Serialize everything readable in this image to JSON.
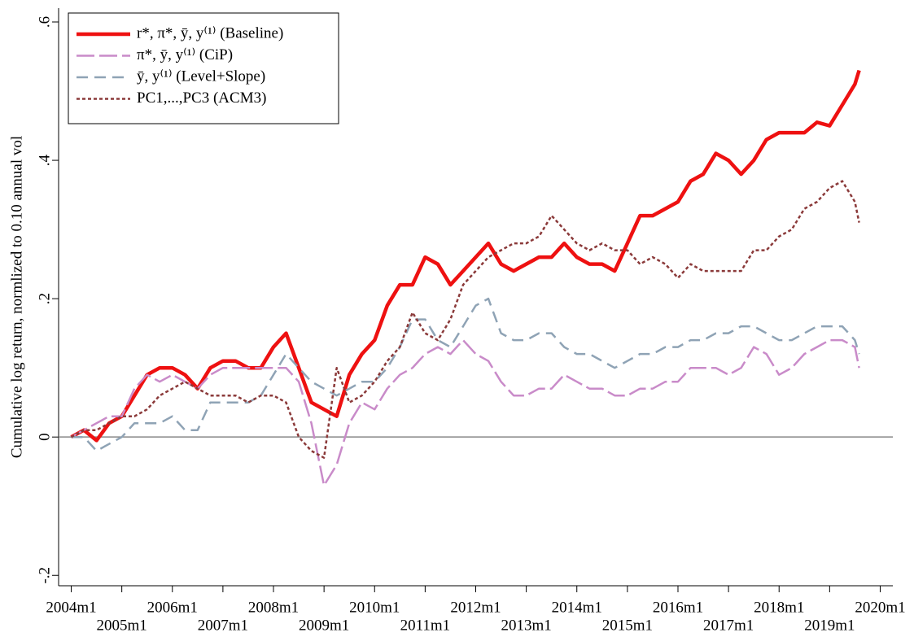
{
  "chart_data": {
    "type": "line",
    "y_label": "Cumulative log return, normlized to 0.10 annual vol",
    "x": [
      "2004m1",
      "2004m4",
      "2004m7",
      "2004m10",
      "2005m1",
      "2005m4",
      "2005m7",
      "2005m10",
      "2006m1",
      "2006m4",
      "2006m7",
      "2006m10",
      "2007m1",
      "2007m4",
      "2007m7",
      "2007m10",
      "2008m1",
      "2008m4",
      "2008m7",
      "2008m10",
      "2009m1",
      "2009m4",
      "2009m7",
      "2009m10",
      "2010m1",
      "2010m4",
      "2010m7",
      "2010m10",
      "2011m1",
      "2011m4",
      "2011m7",
      "2011m10",
      "2012m1",
      "2012m4",
      "2012m7",
      "2012m10",
      "2013m1",
      "2013m4",
      "2013m7",
      "2013m10",
      "2014m1",
      "2014m4",
      "2014m7",
      "2014m10",
      "2015m1",
      "2015m4",
      "2015m7",
      "2015m10",
      "2016m1",
      "2016m4",
      "2016m7",
      "2016m10",
      "2017m1",
      "2017m4",
      "2017m7",
      "2017m10",
      "2018m1",
      "2018m4",
      "2018m7",
      "2018m10",
      "2019m1",
      "2019m4",
      "2019m7",
      "2019m8"
    ],
    "series": [
      {
        "name": "r*, π*, ȳ, y⁽¹⁾  (Baseline)",
        "color": "#ee1111",
        "style": "solid",
        "values": [
          0,
          0.01,
          -0.005,
          0.02,
          0.03,
          0.06,
          0.09,
          0.1,
          0.1,
          0.09,
          0.07,
          0.1,
          0.11,
          0.11,
          0.1,
          0.1,
          0.13,
          0.15,
          0.1,
          0.05,
          0.04,
          0.03,
          0.09,
          0.12,
          0.14,
          0.19,
          0.22,
          0.22,
          0.26,
          0.25,
          0.22,
          0.24,
          0.26,
          0.28,
          0.25,
          0.24,
          0.25,
          0.26,
          0.26,
          0.28,
          0.26,
          0.25,
          0.25,
          0.24,
          0.28,
          0.32,
          0.32,
          0.33,
          0.34,
          0.37,
          0.38,
          0.41,
          0.4,
          0.38,
          0.4,
          0.43,
          0.44,
          0.44,
          0.44,
          0.455,
          0.45,
          0.48,
          0.51,
          0.53
        ]
      },
      {
        "name": "π*, ȳ, y⁽¹⁾  (CiP)",
        "color": "#c98bc9",
        "style": "longdash",
        "values": [
          0,
          0.01,
          0.02,
          0.03,
          0.03,
          0.07,
          0.09,
          0.08,
          0.09,
          0.08,
          0.07,
          0.09,
          0.1,
          0.1,
          0.1,
          0.1,
          0.1,
          0.1,
          0.08,
          0.02,
          -0.07,
          -0.04,
          0.02,
          0.05,
          0.04,
          0.07,
          0.09,
          0.1,
          0.12,
          0.13,
          0.12,
          0.14,
          0.12,
          0.11,
          0.08,
          0.06,
          0.06,
          0.07,
          0.07,
          0.09,
          0.08,
          0.07,
          0.07,
          0.06,
          0.06,
          0.07,
          0.07,
          0.08,
          0.08,
          0.1,
          0.1,
          0.1,
          0.09,
          0.1,
          0.13,
          0.12,
          0.09,
          0.1,
          0.12,
          0.13,
          0.14,
          0.14,
          0.13,
          0.1
        ]
      },
      {
        "name": "ȳ, y⁽¹⁾  (Level+Slope)",
        "color": "#8fa3b5",
        "style": "dash",
        "values": [
          0,
          0,
          -0.02,
          -0.01,
          0,
          0.02,
          0.02,
          0.02,
          0.03,
          0.01,
          0.01,
          0.05,
          0.05,
          0.05,
          0.05,
          0.06,
          0.09,
          0.12,
          0.1,
          0.08,
          0.07,
          0.06,
          0.07,
          0.08,
          0.08,
          0.1,
          0.13,
          0.17,
          0.17,
          0.14,
          0.13,
          0.16,
          0.19,
          0.2,
          0.15,
          0.14,
          0.14,
          0.15,
          0.15,
          0.13,
          0.12,
          0.12,
          0.11,
          0.1,
          0.11,
          0.12,
          0.12,
          0.13,
          0.13,
          0.14,
          0.14,
          0.15,
          0.15,
          0.16,
          0.16,
          0.15,
          0.14,
          0.14,
          0.15,
          0.16,
          0.16,
          0.16,
          0.14,
          0.12
        ]
      },
      {
        "name": "PC1,...,PC3  (ACM3)",
        "color": "#8b3a3a",
        "style": "shortdash",
        "values": [
          0,
          0.01,
          0.01,
          0.02,
          0.03,
          0.03,
          0.04,
          0.06,
          0.07,
          0.08,
          0.07,
          0.06,
          0.06,
          0.06,
          0.05,
          0.06,
          0.06,
          0.05,
          0,
          -0.02,
          -0.03,
          0.1,
          0.05,
          0.06,
          0.08,
          0.11,
          0.13,
          0.18,
          0.15,
          0.14,
          0.17,
          0.22,
          0.24,
          0.26,
          0.27,
          0.28,
          0.28,
          0.29,
          0.32,
          0.3,
          0.28,
          0.27,
          0.28,
          0.27,
          0.27,
          0.25,
          0.26,
          0.25,
          0.23,
          0.25,
          0.24,
          0.24,
          0.24,
          0.24,
          0.27,
          0.27,
          0.29,
          0.3,
          0.33,
          0.34,
          0.36,
          0.37,
          0.34,
          0.31
        ]
      }
    ],
    "xlim": [
      "2003m10",
      "2020m4"
    ],
    "xticks": [
      "2004m1",
      "2005m1",
      "2006m1",
      "2007m1",
      "2008m1",
      "2009m1",
      "2010m1",
      "2011m1",
      "2012m1",
      "2013m1",
      "2014m1",
      "2015m1",
      "2016m1",
      "2017m1",
      "2018m1",
      "2019m1",
      "2020m1"
    ],
    "ylim": [
      -0.215,
      0.62
    ],
    "yticks": [
      {
        "value": -0.2,
        "label": "-.2"
      },
      0,
      {
        "value": 0.2,
        "label": ".2"
      },
      {
        "value": 0.4,
        "label": ".4"
      },
      {
        "value": 0.6,
        "label": ".6"
      }
    ],
    "zero_line": true,
    "legend": "top-left"
  }
}
